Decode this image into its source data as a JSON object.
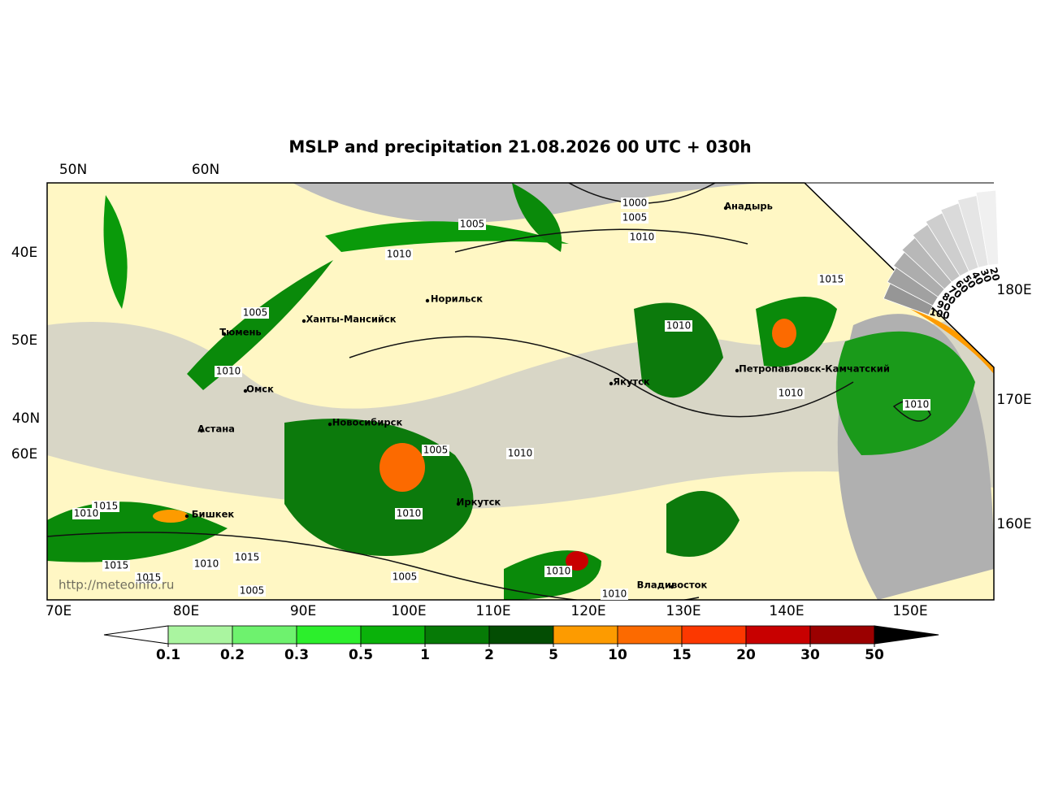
{
  "title": "MSLP and precipitation 21.08.2026 00 UTC + 030h",
  "axis_labels": {
    "top": [
      "50N",
      "60N"
    ],
    "left": [
      "40E",
      "50E",
      "40N",
      "60E"
    ],
    "right": [
      "180E",
      "170E",
      "160E"
    ],
    "bottom": [
      "70E",
      "80E",
      "90E",
      "100E",
      "110E",
      "120E",
      "130E",
      "140E",
      "150E"
    ]
  },
  "cities": [
    "Норильск",
    "Ханты-Мансийск",
    "Тюмень",
    "Омск",
    "Астана",
    "Новосибирск",
    "Якутск",
    "Анадырь",
    "Петропавловск-Камчатский",
    "Иркутск",
    "Бишкек",
    "Владивосток"
  ],
  "isobars": [
    1000,
    1005,
    1010,
    1005,
    1010,
    1005,
    1010,
    1015,
    1010,
    1010,
    1010,
    1005,
    1010,
    1010,
    1015,
    1010,
    1015,
    1015,
    1010,
    1015,
    1005,
    1005,
    1010,
    1010
  ],
  "cloud_scale": [
    100,
    90,
    80,
    70,
    60,
    50,
    40,
    30,
    20
  ],
  "watermark": "http://meteoinfo.ru",
  "colorbar": {
    "levels": [
      0.1,
      0.2,
      0.3,
      0.5,
      1,
      2,
      5,
      10,
      15,
      20,
      30,
      50
    ],
    "colors": [
      "#aaf5a0",
      "#6ef26e",
      "#2cef2c",
      "#0ab20a",
      "#067a06",
      "#034d03",
      "#fd9b00",
      "#fc6a00",
      "#fc3800",
      "#c80000",
      "#9b0000"
    ]
  }
}
